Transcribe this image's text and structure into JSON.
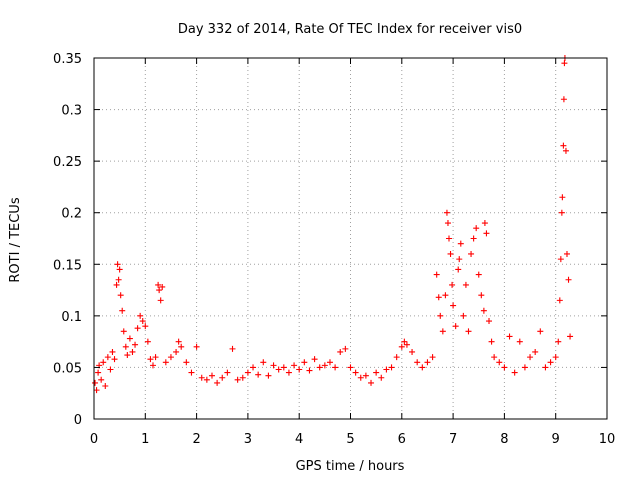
{
  "chart_data": {
    "type": "scatter",
    "title": "Day 332 of 2014, Rate Of TEC Index for receiver vis0",
    "xlabel": "GPS time / hours",
    "ylabel": "ROTI / TECUs",
    "xlim": [
      0,
      10
    ],
    "ylim": [
      0,
      0.35
    ],
    "xticks": [
      0,
      1,
      2,
      3,
      4,
      5,
      6,
      7,
      8,
      9,
      10
    ],
    "yticks": [
      0,
      0.05,
      0.1,
      0.15,
      0.2,
      0.25,
      0.3,
      0.35
    ],
    "xtick_labels": [
      "0",
      "1",
      "2",
      "3",
      "4",
      "5",
      "6",
      "7",
      "8",
      "9",
      "10"
    ],
    "ytick_labels": [
      "0",
      "0.05",
      "0.1",
      "0.15",
      "0.2",
      "0.25",
      "0.3",
      "0.35"
    ],
    "grid": true,
    "marker": "+",
    "color": "#ff0000",
    "series": [
      {
        "name": "ROTI",
        "points": [
          [
            0.02,
            0.035
          ],
          [
            0.05,
            0.028
          ],
          [
            0.08,
            0.045
          ],
          [
            0.1,
            0.052
          ],
          [
            0.14,
            0.038
          ],
          [
            0.18,
            0.055
          ],
          [
            0.22,
            0.032
          ],
          [
            0.27,
            0.06
          ],
          [
            0.32,
            0.048
          ],
          [
            0.36,
            0.065
          ],
          [
            0.4,
            0.058
          ],
          [
            0.44,
            0.13
          ],
          [
            0.46,
            0.15
          ],
          [
            0.48,
            0.135
          ],
          [
            0.5,
            0.145
          ],
          [
            0.52,
            0.12
          ],
          [
            0.55,
            0.105
          ],
          [
            0.58,
            0.085
          ],
          [
            0.62,
            0.07
          ],
          [
            0.65,
            0.062
          ],
          [
            0.7,
            0.078
          ],
          [
            0.75,
            0.065
          ],
          [
            0.8,
            0.072
          ],
          [
            0.85,
            0.088
          ],
          [
            0.9,
            0.1
          ],
          [
            0.95,
            0.095
          ],
          [
            1.0,
            0.09
          ],
          [
            1.05,
            0.075
          ],
          [
            1.1,
            0.058
          ],
          [
            1.15,
            0.052
          ],
          [
            1.2,
            0.06
          ],
          [
            1.25,
            0.13
          ],
          [
            1.27,
            0.125
          ],
          [
            1.3,
            0.115
          ],
          [
            1.33,
            0.128
          ],
          [
            1.4,
            0.055
          ],
          [
            1.5,
            0.06
          ],
          [
            1.6,
            0.065
          ],
          [
            1.65,
            0.075
          ],
          [
            1.7,
            0.07
          ],
          [
            1.8,
            0.055
          ],
          [
            1.9,
            0.045
          ],
          [
            2.0,
            0.07
          ],
          [
            2.1,
            0.04
          ],
          [
            2.2,
            0.038
          ],
          [
            2.3,
            0.042
          ],
          [
            2.4,
            0.035
          ],
          [
            2.5,
            0.04
          ],
          [
            2.6,
            0.045
          ],
          [
            2.7,
            0.068
          ],
          [
            2.8,
            0.038
          ],
          [
            2.9,
            0.04
          ],
          [
            3.0,
            0.045
          ],
          [
            3.1,
            0.05
          ],
          [
            3.2,
            0.043
          ],
          [
            3.3,
            0.055
          ],
          [
            3.4,
            0.042
          ],
          [
            3.5,
            0.052
          ],
          [
            3.6,
            0.048
          ],
          [
            3.7,
            0.05
          ],
          [
            3.8,
            0.045
          ],
          [
            3.9,
            0.052
          ],
          [
            4.0,
            0.048
          ],
          [
            4.1,
            0.055
          ],
          [
            4.2,
            0.047
          ],
          [
            4.3,
            0.058
          ],
          [
            4.4,
            0.05
          ],
          [
            4.5,
            0.052
          ],
          [
            4.6,
            0.055
          ],
          [
            4.7,
            0.05
          ],
          [
            4.8,
            0.065
          ],
          [
            4.9,
            0.068
          ],
          [
            5.0,
            0.05
          ],
          [
            5.1,
            0.045
          ],
          [
            5.2,
            0.04
          ],
          [
            5.3,
            0.042
          ],
          [
            5.4,
            0.035
          ],
          [
            5.5,
            0.045
          ],
          [
            5.6,
            0.04
          ],
          [
            5.7,
            0.048
          ],
          [
            5.8,
            0.05
          ],
          [
            5.9,
            0.06
          ],
          [
            6.0,
            0.07
          ],
          [
            6.05,
            0.075
          ],
          [
            6.1,
            0.072
          ],
          [
            6.2,
            0.065
          ],
          [
            6.3,
            0.055
          ],
          [
            6.4,
            0.05
          ],
          [
            6.5,
            0.055
          ],
          [
            6.6,
            0.06
          ],
          [
            6.68,
            0.14
          ],
          [
            6.72,
            0.118
          ],
          [
            6.75,
            0.1
          ],
          [
            6.8,
            0.085
          ],
          [
            6.85,
            0.12
          ],
          [
            6.88,
            0.2
          ],
          [
            6.9,
            0.19
          ],
          [
            6.92,
            0.175
          ],
          [
            6.95,
            0.16
          ],
          [
            6.98,
            0.13
          ],
          [
            7.0,
            0.11
          ],
          [
            7.05,
            0.09
          ],
          [
            7.1,
            0.145
          ],
          [
            7.12,
            0.155
          ],
          [
            7.15,
            0.17
          ],
          [
            7.2,
            0.1
          ],
          [
            7.25,
            0.13
          ],
          [
            7.3,
            0.085
          ],
          [
            7.35,
            0.16
          ],
          [
            7.4,
            0.175
          ],
          [
            7.45,
            0.185
          ],
          [
            7.5,
            0.14
          ],
          [
            7.55,
            0.12
          ],
          [
            7.6,
            0.105
          ],
          [
            7.62,
            0.19
          ],
          [
            7.65,
            0.18
          ],
          [
            7.7,
            0.095
          ],
          [
            7.75,
            0.075
          ],
          [
            7.8,
            0.06
          ],
          [
            7.9,
            0.055
          ],
          [
            8.0,
            0.05
          ],
          [
            8.1,
            0.08
          ],
          [
            8.2,
            0.045
          ],
          [
            8.3,
            0.075
          ],
          [
            8.4,
            0.05
          ],
          [
            8.5,
            0.06
          ],
          [
            8.6,
            0.065
          ],
          [
            8.7,
            0.085
          ],
          [
            8.8,
            0.05
          ],
          [
            8.9,
            0.055
          ],
          [
            9.0,
            0.06
          ],
          [
            9.05,
            0.075
          ],
          [
            9.08,
            0.115
          ],
          [
            9.1,
            0.155
          ],
          [
            9.12,
            0.2
          ],
          [
            9.13,
            0.215
          ],
          [
            9.15,
            0.265
          ],
          [
            9.16,
            0.31
          ],
          [
            9.17,
            0.345
          ],
          [
            9.18,
            0.35
          ],
          [
            9.2,
            0.26
          ],
          [
            9.22,
            0.16
          ],
          [
            9.25,
            0.135
          ],
          [
            9.28,
            0.08
          ]
        ]
      }
    ]
  }
}
